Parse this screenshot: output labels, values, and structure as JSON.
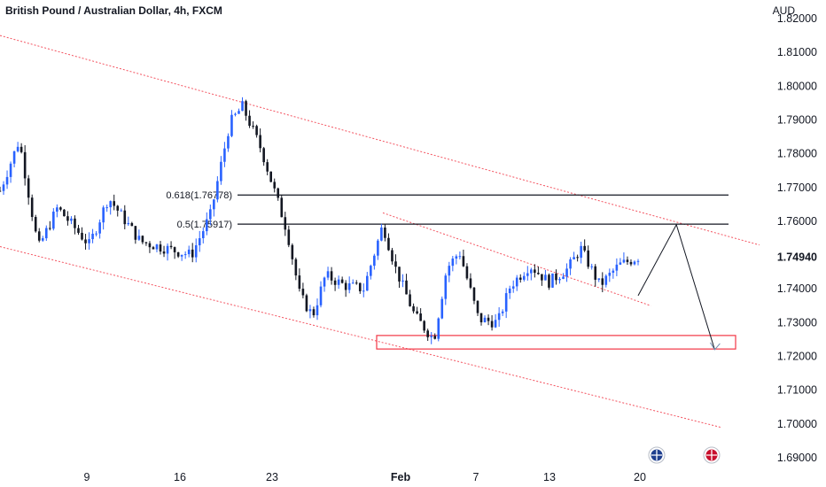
{
  "chart_title": "British Pound / Australian Dollar, 4h, FXCM",
  "currency_label": "AUD",
  "colors": {
    "up": "#2962ff",
    "down": "#131722",
    "channel": "#f23645",
    "fib": "#131722",
    "projection": "#131722",
    "target_arrow": "#6f8cb0",
    "zone": "#f23645",
    "axis_text": "#131722"
  },
  "chart_data": {
    "type": "candlestick",
    "symbol": "GBP/AUD",
    "timeframe": "4h",
    "source": "FXCM",
    "ylim": [
      1.69,
      1.82
    ],
    "y_ticks": [
      "1.82000",
      "1.81000",
      "1.80000",
      "1.79000",
      "1.78000",
      "1.77000",
      "1.76000",
      "1.74940",
      "1.74000",
      "1.73000",
      "1.72000",
      "1.71000",
      "1.70000",
      "1.69000"
    ],
    "x_ticks": [
      "9",
      "16",
      "23",
      "Feb",
      "7",
      "13",
      "20"
    ],
    "last_price": 1.7494,
    "fib_levels": [
      {
        "label": "0.618(1.76778)",
        "value": 1.76778
      },
      {
        "label": "0.5(1.75917)",
        "value": 1.75917
      }
    ],
    "support_zone": {
      "low": 1.7222,
      "high": 1.7262
    },
    "projection_path": [
      {
        "bar": 1.0,
        "value": 1.738
      },
      {
        "bar": 1.06,
        "value": 1.759
      },
      {
        "bar": 1.12,
        "value": 1.722
      }
    ],
    "channel_lines": [
      {
        "from": {
          "bar": 0.0,
          "value": 1.815
        },
        "to": {
          "bar": 1.19,
          "value": 1.753
        }
      },
      {
        "from": {
          "bar": 0.0,
          "value": 1.7525
        },
        "to": {
          "bar": 1.13,
          "value": 1.699
        }
      },
      {
        "from": {
          "bar": 0.6,
          "value": 1.7625
        },
        "to": {
          "bar": 1.02,
          "value": 1.735
        }
      }
    ],
    "waypoints": [
      {
        "bar": 0.0,
        "value": 1.769
      },
      {
        "bar": 0.03,
        "value": 1.784
      },
      {
        "bar": 0.06,
        "value": 1.752
      },
      {
        "bar": 0.09,
        "value": 1.764
      },
      {
        "bar": 0.14,
        "value": 1.753
      },
      {
        "bar": 0.17,
        "value": 1.767
      },
      {
        "bar": 0.22,
        "value": 1.754
      },
      {
        "bar": 0.26,
        "value": 1.752
      },
      {
        "bar": 0.3,
        "value": 1.75
      },
      {
        "bar": 0.33,
        "value": 1.762
      },
      {
        "bar": 0.36,
        "value": 1.789
      },
      {
        "bar": 0.38,
        "value": 1.794
      },
      {
        "bar": 0.41,
        "value": 1.781
      },
      {
        "bar": 0.43,
        "value": 1.769
      },
      {
        "bar": 0.45,
        "value": 1.757
      },
      {
        "bar": 0.47,
        "value": 1.738
      },
      {
        "bar": 0.49,
        "value": 1.732
      },
      {
        "bar": 0.51,
        "value": 1.744
      },
      {
        "bar": 0.54,
        "value": 1.741
      },
      {
        "bar": 0.57,
        "value": 1.74
      },
      {
        "bar": 0.6,
        "value": 1.759
      },
      {
        "bar": 0.62,
        "value": 1.746
      },
      {
        "bar": 0.65,
        "value": 1.732
      },
      {
        "bar": 0.68,
        "value": 1.725
      },
      {
        "bar": 0.7,
        "value": 1.746
      },
      {
        "bar": 0.72,
        "value": 1.751
      },
      {
        "bar": 0.75,
        "value": 1.731
      },
      {
        "bar": 0.78,
        "value": 1.73
      },
      {
        "bar": 0.8,
        "value": 1.741
      },
      {
        "bar": 0.83,
        "value": 1.747
      },
      {
        "bar": 0.86,
        "value": 1.742
      },
      {
        "bar": 0.89,
        "value": 1.746
      },
      {
        "bar": 0.91,
        "value": 1.752
      },
      {
        "bar": 0.94,
        "value": 1.741
      },
      {
        "bar": 0.97,
        "value": 1.747
      },
      {
        "bar": 1.0,
        "value": 1.7494
      }
    ]
  }
}
